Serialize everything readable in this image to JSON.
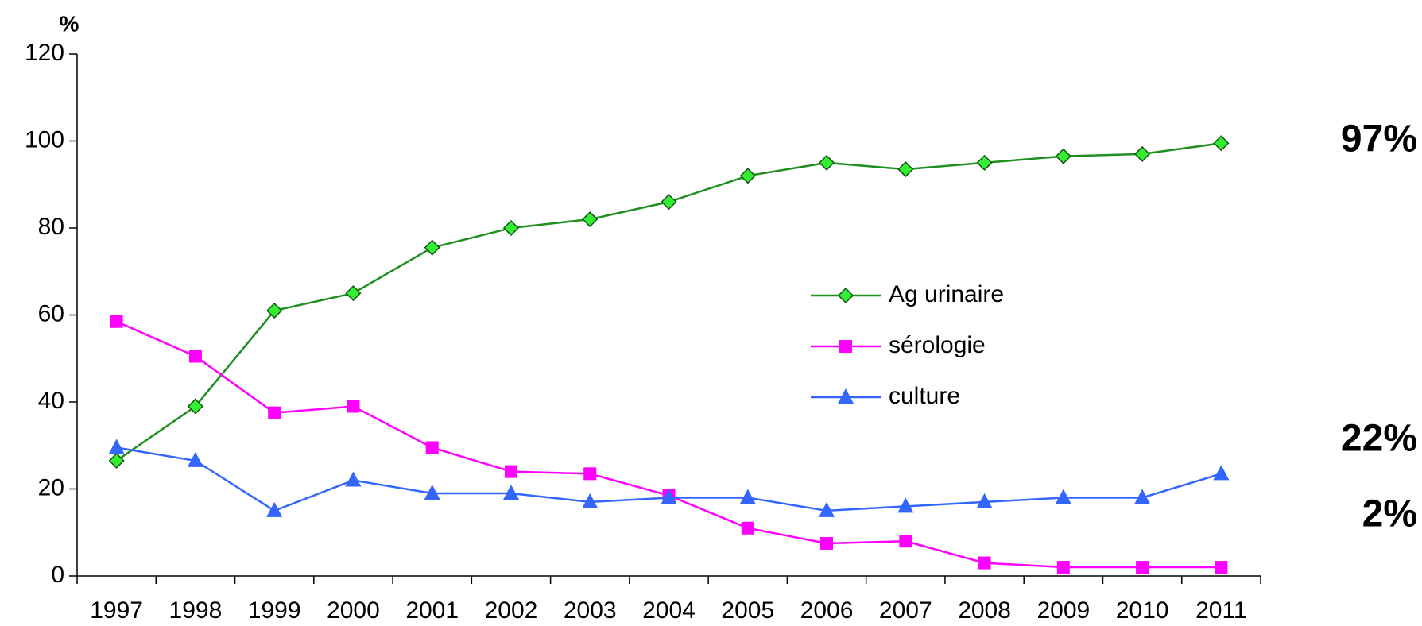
{
  "chart_data": {
    "type": "line",
    "y_label": "%",
    "categories": [
      "1997",
      "1998",
      "1999",
      "2000",
      "2001",
      "2002",
      "2003",
      "2004",
      "2005",
      "2006",
      "2007",
      "2008",
      "2009",
      "2010",
      "2011"
    ],
    "series": [
      {
        "name": "Ag urinaire",
        "color": "#1f8f1f",
        "marker_color": "#33ee33",
        "marker": "diamond",
        "values": [
          26.5,
          39,
          61,
          65,
          75.5,
          80,
          82,
          86,
          92,
          95,
          93.5,
          95,
          96.5,
          97,
          99.5
        ]
      },
      {
        "name": "sérologie",
        "color": "#ff00ff",
        "marker_color": "#ff00ff",
        "marker": "square",
        "values": [
          58.5,
          50.5,
          37.5,
          39,
          29.5,
          24,
          23.5,
          18.5,
          11,
          7.5,
          8,
          3,
          2,
          2,
          2
        ]
      },
      {
        "name": "culture",
        "color": "#3366ff",
        "marker_color": "#3366ff",
        "marker": "triangle",
        "values": [
          29.5,
          26.5,
          15,
          22,
          19,
          19,
          17,
          18,
          18,
          15,
          16,
          17,
          18,
          18,
          23.5
        ]
      }
    ],
    "annotations": [
      {
        "text": "97%",
        "color": "#1ea01e"
      },
      {
        "text": "22%",
        "color": "#6b93ef"
      },
      {
        "text": "2%",
        "color": "#d9349f"
      }
    ],
    "ylim": [
      0,
      120
    ],
    "yticks": [
      0,
      20,
      40,
      60,
      80,
      100,
      120
    ]
  }
}
